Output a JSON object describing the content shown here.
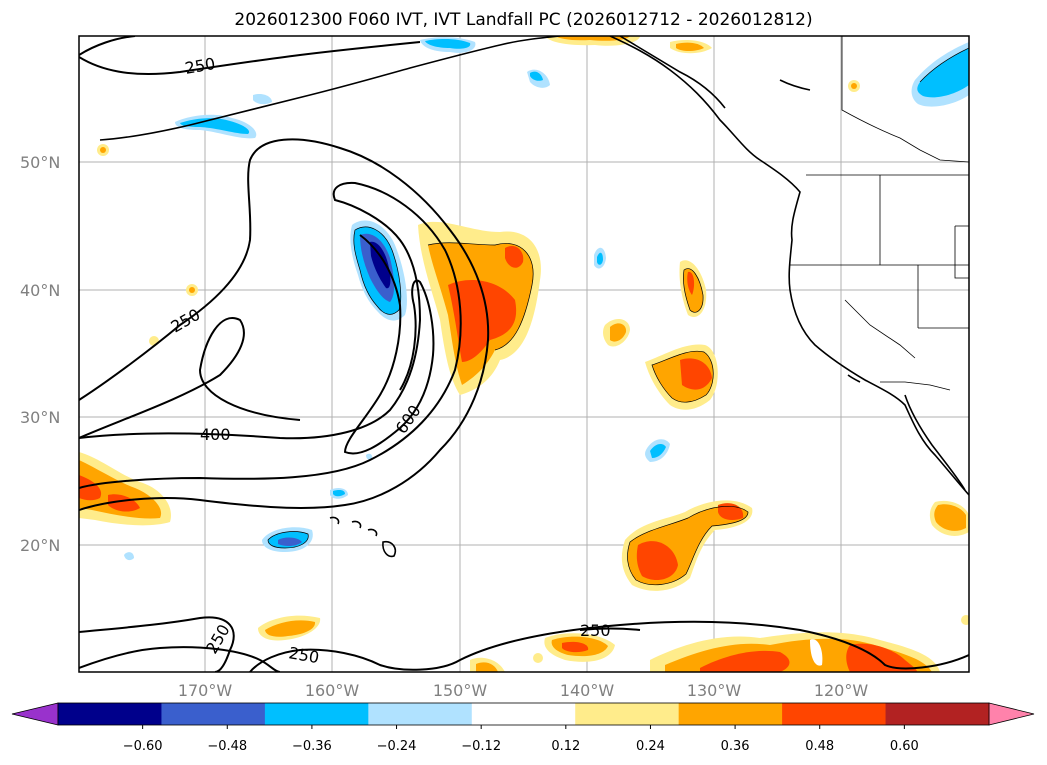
{
  "title": "2026012300 F060 IVT, IVT Landfall PC (2026012712 - 2026012812)",
  "lat_labels": [
    "50°N",
    "40°N",
    "30°N",
    "20°N"
  ],
  "lon_labels": [
    "170°W",
    "160°W",
    "150°W",
    "140°W",
    "130°W",
    "120°W"
  ],
  "contour_labels": [
    "250",
    "250",
    "400",
    "600",
    "250",
    "250",
    "250"
  ],
  "colorbar": {
    "ticks": [
      "−0.60",
      "−0.48",
      "−0.36",
      "−0.24",
      "−0.12",
      "0.12",
      "0.24",
      "0.36",
      "0.48",
      "0.60"
    ],
    "colors": [
      "#9932cc",
      "#00008b",
      "#3a5fcd",
      "#00bfff",
      "#b0e2ff",
      "#ffffff",
      "#ffec8b",
      "#ffa500",
      "#ff4500",
      "#b22222",
      "#ff82ab"
    ]
  }
}
